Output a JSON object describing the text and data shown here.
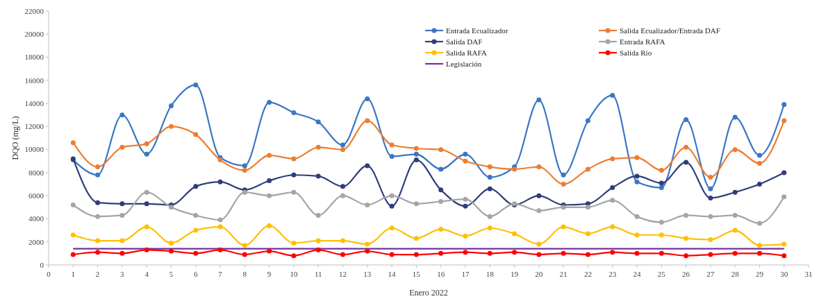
{
  "chart_data": {
    "type": "line",
    "xlabel": "Enero 2022",
    "ylabel": "DQO (mg/L)",
    "x": [
      1,
      2,
      3,
      4,
      5,
      6,
      7,
      8,
      9,
      10,
      11,
      12,
      13,
      14,
      15,
      16,
      17,
      18,
      19,
      20,
      21,
      22,
      23,
      24,
      25,
      26,
      27,
      28,
      29,
      30
    ],
    "xlim": [
      0,
      31
    ],
    "xticks": [
      0,
      1,
      2,
      3,
      4,
      5,
      6,
      7,
      8,
      9,
      10,
      11,
      12,
      13,
      14,
      15,
      16,
      17,
      18,
      19,
      20,
      21,
      22,
      23,
      24,
      25,
      26,
      27,
      28,
      29,
      30,
      31
    ],
    "ylim": [
      0,
      22000
    ],
    "yticks": [
      0,
      2000,
      4000,
      6000,
      8000,
      10000,
      12000,
      14000,
      16000,
      18000,
      20000,
      22000
    ],
    "grid": false,
    "legend": "top right",
    "marker": "circle",
    "line_style": "solid",
    "series": [
      {
        "name": "Entrada Ecualizador",
        "color": "#3a76c4",
        "values": [
          9100,
          7800,
          13000,
          9600,
          13800,
          15600,
          9300,
          8600,
          14100,
          13200,
          12400,
          10400,
          14400,
          9400,
          9600,
          8300,
          9600,
          7600,
          8500,
          14300,
          7800,
          12500,
          14700,
          7200,
          6700,
          12600,
          6600,
          12800,
          9500,
          13900
        ]
      },
      {
        "name": "Salida Ecualizador/Entrada DAF",
        "color": "#ed7d31",
        "values": [
          10600,
          8500,
          10200,
          10500,
          12000,
          11300,
          9100,
          8200,
          9500,
          9200,
          10200,
          10000,
          12500,
          10400,
          10100,
          10000,
          9000,
          8500,
          8300,
          8500,
          7000,
          8300,
          9200,
          9300,
          8200,
          10200,
          7600,
          10000,
          8800,
          12500
        ]
      },
      {
        "name": "Salida DAF",
        "color": "#2f3d7a",
        "values": [
          9200,
          5400,
          5300,
          5300,
          5200,
          6800,
          7200,
          6500,
          7300,
          7800,
          7700,
          6800,
          8600,
          5100,
          9100,
          6500,
          5100,
          6600,
          5200,
          6000,
          5200,
          5300,
          6700,
          7700,
          7100,
          8900,
          5800,
          6300,
          7000,
          8000
        ]
      },
      {
        "name": "Entrada RAFA",
        "color": "#a5a5a5",
        "values": [
          5200,
          4200,
          4300,
          6300,
          5000,
          4300,
          3900,
          6300,
          6000,
          6300,
          4300,
          6000,
          5200,
          6000,
          5300,
          5500,
          5700,
          4200,
          5300,
          4700,
          5000,
          5000,
          5600,
          4200,
          3700,
          4300,
          4200,
          4300,
          3600,
          5900
        ]
      },
      {
        "name": "Salida RAFA",
        "color": "#ffc000",
        "values": [
          2600,
          2100,
          2100,
          3300,
          1900,
          3000,
          3300,
          1700,
          3400,
          1900,
          2100,
          2100,
          1800,
          3200,
          2300,
          3100,
          2500,
          3200,
          2700,
          1800,
          3300,
          2700,
          3300,
          2600,
          2600,
          2300,
          2200,
          3000,
          1700,
          1800
        ]
      },
      {
        "name": "Salida Río",
        "color": "#ff0000",
        "values": [
          900,
          1100,
          1000,
          1300,
          1200,
          1000,
          1300,
          900,
          1200,
          800,
          1300,
          900,
          1200,
          900,
          900,
          1000,
          1100,
          1000,
          1100,
          900,
          1000,
          900,
          1100,
          1000,
          1000,
          800,
          900,
          1000,
          1000,
          800
        ]
      }
    ],
    "ref_lines": [
      {
        "axis": "y",
        "value": 1400,
        "label": "Legislación",
        "color": "#7030a0",
        "line_style": "solid"
      }
    ]
  }
}
